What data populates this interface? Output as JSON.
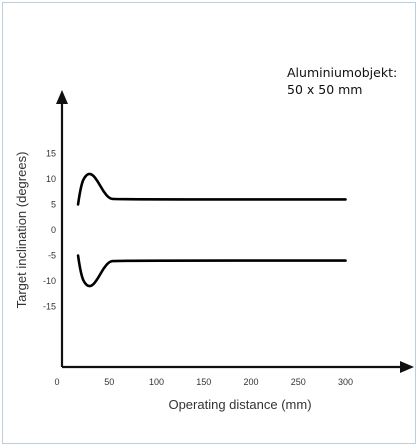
{
  "chart_data": {
    "type": "line",
    "title": "",
    "xlabel": "Operating distance (mm)",
    "ylabel": "Target inclination (degrees)",
    "xlim": [
      0,
      300
    ],
    "ylim": [
      -20,
      20
    ],
    "x_ticks": [
      0,
      50,
      100,
      150,
      200,
      250,
      300
    ],
    "y_ticks": [
      15,
      10,
      5,
      0,
      -5,
      -10,
      -15
    ],
    "annotation": [
      "Aluminiumobjekt:",
      "50 x 50 mm"
    ],
    "grid": false,
    "series": [
      {
        "x": [
          17,
          20,
          26,
          32,
          38,
          44,
          50,
          56,
          300
        ],
        "y": [
          5,
          9,
          11,
          11,
          9.5,
          7.5,
          6.2,
          6,
          6
        ]
      },
      {
        "x": [
          17,
          20,
          26,
          32,
          38,
          44,
          50,
          56,
          300
        ],
        "y": [
          -5,
          -9,
          -11,
          -11,
          -9.5,
          -7.5,
          -6.2,
          -6,
          -6
        ]
      }
    ],
    "colors": {
      "line": "#000000",
      "axis": "#111111",
      "frame": "#b9cfdf"
    }
  }
}
